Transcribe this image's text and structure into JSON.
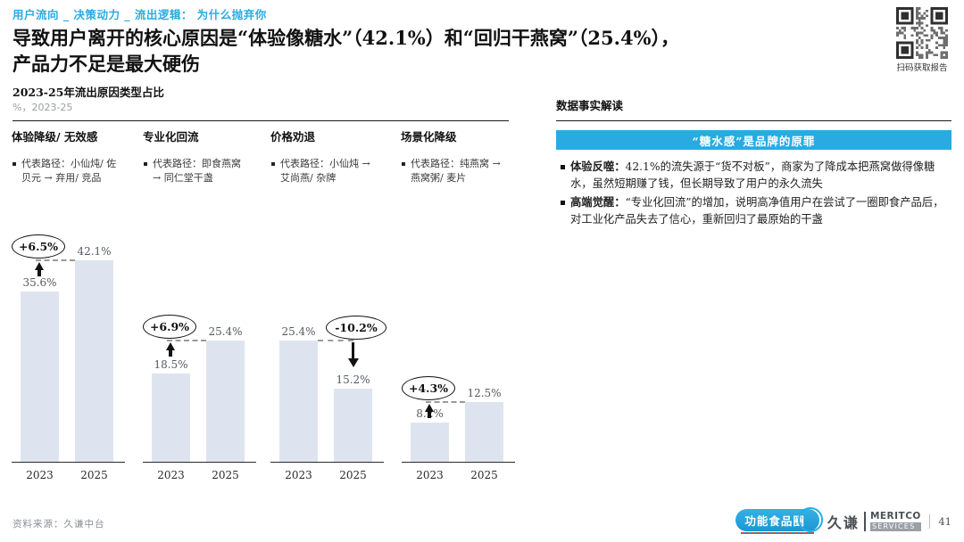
{
  "page": {
    "breadcrumb": "用户流向 _ 决策动力 _ 流出逻辑： 为什么抛弃你",
    "title_line1": "导致用户离开的核心原因是“体验像糖水”（42.1%）和“回归干燕窝”（25.4%），",
    "title_line2": "产品力不足是最大硬伤",
    "qr_caption": "扫码获取报告"
  },
  "chart_data": {
    "type": "bar",
    "title": "2023-25年流出原因类型占比",
    "subtitle": "%，2023-25",
    "unit": "%",
    "categories": [
      "2023",
      "2025"
    ],
    "ylim": [
      0,
      45
    ],
    "bar_color": "#DEE4EF",
    "grid": false,
    "groups": [
      {
        "name": "体验降级/ 无效感",
        "path": "代表路径：小仙炖/ 佐贝元 → 弃用/ 竞品",
        "values": [
          35.6,
          42.1
        ],
        "labels": [
          "35.6%",
          "42.1%"
        ],
        "delta": "+6.5%",
        "trend": "rise"
      },
      {
        "name": "专业化回流",
        "path": "代表路径：即食燕窝 → 同仁堂干盏",
        "values": [
          18.5,
          25.4
        ],
        "labels": [
          "18.5%",
          "25.4%"
        ],
        "delta": "+6.9%",
        "trend": "rise"
      },
      {
        "name": "价格劝退",
        "path": "代表路径：小仙炖 → 艾尚燕/ 杂牌",
        "values": [
          25.4,
          15.2
        ],
        "labels": [
          "25.4%",
          "15.2%"
        ],
        "delta": "-10.2%",
        "trend": "fall"
      },
      {
        "name": "场景化降级",
        "path": "代表路径：纯燕窝 → 燕窝粥/ 麦片",
        "values": [
          8.2,
          12.5
        ],
        "labels": [
          "8.2%",
          "12.5%"
        ],
        "delta": "+4.3%",
        "trend": "rise"
      }
    ]
  },
  "insights": {
    "heading": "数据事实解读",
    "banner": "“糖水感”是品牌的原罪",
    "bullets": [
      {
        "lead": "体验反噬：",
        "text": "42.1%的流失源于“货不对板”，商家为了降成本把燕窝做得像糖水，虽然短期赚了钱，但长期导致了用户的永久流失"
      },
      {
        "lead": "高端觉醒：",
        "text": "“专业化回流”的增加，说明高净值用户在尝试了一圈即食产品后，对工业化产品失去了信心，重新回归了最原始的干盏"
      }
    ]
  },
  "footer": {
    "source": "资料来源：久谦中台",
    "brand_badge": "功能食品圈",
    "brand_cn": "久谦",
    "brand_en_top": "MERITCO",
    "brand_en_bottom": "SERVICES",
    "page_number": "41"
  },
  "colors": {
    "accent_blue": "#29ABE2",
    "bar_fill": "#DEE4EF"
  }
}
